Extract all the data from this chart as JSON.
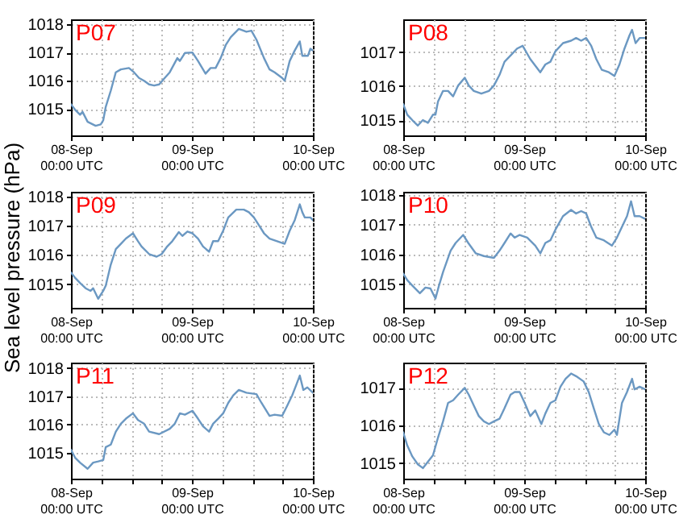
{
  "chart_data": [
    {
      "type": "line",
      "title": "P07",
      "color": "#6b98c2",
      "line_style": "solid",
      "grid": true,
      "xlim": [
        "--09-08T00:00",
        "--09-10T00:00"
      ],
      "ylim": [
        1014.07,
        1018.17
      ],
      "yticks": [
        1015,
        1016,
        1017,
        1018
      ],
      "xticks": [
        {
          "value": "--09-08T00:00",
          "label": "08-Sep\n00:00 UTC"
        },
        {
          "value": "--09-08T06:00",
          "label": null
        },
        {
          "value": "--09-08T12:00",
          "label": null
        },
        {
          "value": "--09-08T18:00",
          "label": null
        },
        {
          "value": "--09-09T00:00",
          "label": "09-Sep\n00:00 UTC"
        },
        {
          "value": "--09-09T06:00",
          "label": null
        },
        {
          "value": "--09-09T12:00",
          "label": null
        },
        {
          "value": "--09-09T18:00",
          "label": null
        },
        {
          "value": "--09-10T00:00",
          "label": "10-Sep\n00:00 UTC"
        }
      ],
      "x": [
        "--09-08T00:00",
        "--09-08T00:48",
        "--09-08T01:48",
        "--09-08T02:18",
        "--09-08T03:18",
        "--09-08T04:54",
        "--09-08T05:54",
        "--09-08T06:24",
        "--09-08T06:54",
        "--09-08T07:54",
        "--09-08T08:54",
        "--09-08T09:54",
        "--09-08T11:30",
        "--09-08T12:30",
        "--09-08T13:30",
        "--09-08T14:30",
        "--09-08T15:30",
        "--09-08T16:30",
        "--09-08T17:30",
        "--09-08T18:36",
        "--09-08T19:36",
        "--09-08T21:06",
        "--09-08T21:36",
        "--09-08T22:36",
        "--09-09T00:06",
        "--09-09T01:12",
        "--09-09T02:42",
        "--09-09T03:42",
        "--09-09T04:42",
        "--09-09T05:42",
        "--09-09T06:42",
        "--09-09T07:42",
        "--09-09T09:18",
        "--09-09T10:48",
        "--09-09T11:48",
        "--09-09T12:48",
        "--09-09T14:18",
        "--09-09T15:24",
        "--09-09T16:24",
        "--09-09T17:54",
        "--09-09T18:24",
        "--09-09T19:24",
        "--09-09T20:24",
        "--09-09T21:24",
        "--09-09T21:54",
        "--09-09T23:00",
        "--09-09T23:30",
        "--09-10T00:00"
      ],
      "values": [
        1015.17,
        1014.98,
        1014.8,
        1014.9,
        1014.55,
        1014.41,
        1014.46,
        1014.6,
        1015.08,
        1015.65,
        1016.3,
        1016.4,
        1016.45,
        1016.3,
        1016.1,
        1016.0,
        1015.87,
        1015.83,
        1015.87,
        1016.1,
        1016.3,
        1016.8,
        1016.7,
        1016.98,
        1017.0,
        1016.7,
        1016.25,
        1016.45,
        1016.45,
        1016.8,
        1017.26,
        1017.54,
        1017.83,
        1017.73,
        1017.77,
        1017.45,
        1016.8,
        1016.4,
        1016.3,
        1016.1,
        1016.0,
        1016.7,
        1017.07,
        1017.39,
        1016.88,
        1016.88,
        1017.13,
        1017.07
      ]
    },
    {
      "type": "line",
      "title": "P08",
      "color": "#6b98c2",
      "line_style": "solid",
      "grid": true,
      "xlim": [
        "--09-08T00:00",
        "--09-10T00:00"
      ],
      "ylim": [
        1014.55,
        1017.97
      ],
      "yticks": [
        1015,
        1016,
        1017
      ],
      "xticks": [
        {
          "value": "--09-08T00:00",
          "label": "08-Sep\n00:00 UTC"
        },
        {
          "value": "--09-08T06:00",
          "label": null
        },
        {
          "value": "--09-08T12:00",
          "label": null
        },
        {
          "value": "--09-08T18:00",
          "label": null
        },
        {
          "value": "--09-09T00:00",
          "label": "09-Sep\n00:00 UTC"
        },
        {
          "value": "--09-09T06:00",
          "label": null
        },
        {
          "value": "--09-09T12:00",
          "label": null
        },
        {
          "value": "--09-09T18:00",
          "label": null
        },
        {
          "value": "--09-10T00:00",
          "label": "10-Sep\n00:00 UTC"
        }
      ],
      "x": [
        "--09-08T00:00",
        "--09-08T00:48",
        "--09-08T01:48",
        "--09-08T02:54",
        "--09-08T03:54",
        "--09-08T04:54",
        "--09-08T05:54",
        "--09-08T06:24",
        "--09-08T06:54",
        "--09-08T07:54",
        "--09-08T08:54",
        "--09-08T09:54",
        "--09-08T10:54",
        "--09-08T12:12",
        "--09-08T13:00",
        "--09-08T14:00",
        "--09-08T15:30",
        "--09-08T17:00",
        "--09-08T18:00",
        "--09-08T19:06",
        "--09-08T20:06",
        "--09-08T21:36",
        "--09-08T22:36",
        "--09-08T23:42",
        "--09-09T01:12",
        "--09-09T03:12",
        "--09-09T04:12",
        "--09-09T05:12",
        "--09-09T06:12",
        "--09-09T07:42",
        "--09-09T09:18",
        "--09-09T10:18",
        "--09-09T11:18",
        "--09-09T12:18",
        "--09-09T13:18",
        "--09-09T14:18",
        "--09-09T15:24",
        "--09-09T16:48",
        "--09-09T17:54",
        "--09-09T18:54",
        "--09-09T19:54",
        "--09-09T20:54",
        "--09-09T21:24",
        "--09-09T22:06",
        "--09-09T22:54",
        "--09-10T00:00"
      ],
      "values": [
        1015.47,
        1015.16,
        1015.0,
        1014.84,
        1015.0,
        1014.92,
        1015.16,
        1015.16,
        1015.55,
        1015.86,
        1015.86,
        1015.7,
        1016.02,
        1016.25,
        1016.02,
        1015.86,
        1015.78,
        1015.86,
        1016.02,
        1016.33,
        1016.72,
        1016.95,
        1017.11,
        1017.19,
        1016.8,
        1016.41,
        1016.64,
        1016.72,
        1017.03,
        1017.27,
        1017.34,
        1017.42,
        1017.34,
        1017.42,
        1017.19,
        1016.8,
        1016.48,
        1016.41,
        1016.3,
        1016.64,
        1017.11,
        1017.5,
        1017.66,
        1017.27,
        1017.42,
        1017.42
      ]
    },
    {
      "type": "line",
      "title": "P09",
      "ylabel": "Sea level pressure (hPa)",
      "color": "#6b98c2",
      "line_style": "solid",
      "grid": true,
      "xlim": [
        "--09-08T00:00",
        "--09-10T00:00"
      ],
      "ylim": [
        1014.19,
        1018.16
      ],
      "yticks": [
        1015,
        1016,
        1017,
        1018
      ],
      "xticks": [
        {
          "value": "--09-08T00:00",
          "label": "08-Sep\n00:00 UTC"
        },
        {
          "value": "--09-08T06:00",
          "label": null
        },
        {
          "value": "--09-08T12:00",
          "label": null
        },
        {
          "value": "--09-08T18:00",
          "label": null
        },
        {
          "value": "--09-09T00:00",
          "label": "09-Sep\n00:00 UTC"
        },
        {
          "value": "--09-09T06:00",
          "label": null
        },
        {
          "value": "--09-09T12:00",
          "label": null
        },
        {
          "value": "--09-09T18:00",
          "label": null
        },
        {
          "value": "--09-10T00:00",
          "label": "10-Sep\n00:00 UTC"
        }
      ],
      "x": [
        "--09-08T00:00",
        "--09-08T00:48",
        "--09-08T01:48",
        "--09-08T02:54",
        "--09-08T03:54",
        "--09-08T04:24",
        "--09-08T05:24",
        "--09-08T06:24",
        "--09-08T06:54",
        "--09-08T07:54",
        "--09-08T08:54",
        "--09-08T09:54",
        "--09-08T10:54",
        "--09-08T12:18",
        "--09-08T13:18",
        "--09-08T14:00",
        "--09-08T15:30",
        "--09-08T17:00",
        "--09-08T18:00",
        "--09-08T19:06",
        "--09-08T20:06",
        "--09-08T21:24",
        "--09-08T22:06",
        "--09-08T23:06",
        "--09-09T00:06",
        "--09-09T01:12",
        "--09-09T02:12",
        "--09-09T03:24",
        "--09-09T04:12",
        "--09-09T05:12",
        "--09-09T06:12",
        "--09-09T07:12",
        "--09-09T08:48",
        "--09-09T10:18",
        "--09-09T11:18",
        "--09-09T12:18",
        "--09-09T13:18",
        "--09-09T14:18",
        "--09-09T15:24",
        "--09-09T16:54",
        "--09-09T18:24",
        "--09-09T19:24",
        "--09-09T20:24",
        "--09-09T21:24",
        "--09-09T21:54",
        "--09-09T22:24",
        "--09-09T23:30",
        "--09-10T00:00"
      ],
      "values": [
        1015.4,
        1015.22,
        1015.04,
        1014.86,
        1014.77,
        1014.86,
        1014.5,
        1014.77,
        1014.95,
        1015.67,
        1016.2,
        1016.38,
        1016.56,
        1016.74,
        1016.47,
        1016.29,
        1016.03,
        1015.94,
        1016.03,
        1016.29,
        1016.47,
        1016.78,
        1016.65,
        1016.8,
        1016.74,
        1016.56,
        1016.29,
        1016.11,
        1016.47,
        1016.47,
        1016.83,
        1017.28,
        1017.55,
        1017.55,
        1017.46,
        1017.28,
        1017.01,
        1016.74,
        1016.56,
        1016.47,
        1016.38,
        1016.83,
        1017.19,
        1017.73,
        1017.46,
        1017.28,
        1017.28,
        1017.19
      ]
    },
    {
      "type": "line",
      "title": "P10",
      "color": "#6b98c2",
      "line_style": "solid",
      "grid": true,
      "xlim": [
        "--09-08T00:00",
        "--09-10T00:00"
      ],
      "ylim": [
        1014.21,
        1018.11
      ],
      "yticks": [
        1015,
        1016,
        1017,
        1018
      ],
      "xticks": [
        {
          "value": "--09-08T00:00",
          "label": "08-Sep\n00:00 UTC"
        },
        {
          "value": "--09-08T06:00",
          "label": null
        },
        {
          "value": "--09-08T12:00",
          "label": null
        },
        {
          "value": "--09-08T18:00",
          "label": null
        },
        {
          "value": "--09-09T00:00",
          "label": "09-Sep\n00:00 UTC"
        },
        {
          "value": "--09-09T06:00",
          "label": null
        },
        {
          "value": "--09-09T12:00",
          "label": null
        },
        {
          "value": "--09-09T18:00",
          "label": null
        },
        {
          "value": "--09-10T00:00",
          "label": "10-Sep\n00:00 UTC"
        }
      ],
      "x": [
        "--09-08T00:00",
        "--09-08T00:48",
        "--09-08T01:48",
        "--09-08T03:18",
        "--09-08T04:24",
        "--09-08T05:24",
        "--09-08T06:24",
        "--09-08T07:06",
        "--09-08T07:54",
        "--09-08T09:24",
        "--09-08T10:24",
        "--09-08T11:54",
        "--09-08T12:54",
        "--09-08T14:24",
        "--09-08T16:00",
        "--09-08T18:00",
        "--09-08T19:06",
        "--09-08T20:06",
        "--09-08T21:18",
        "--09-08T22:06",
        "--09-08T23:06",
        "--09-09T00:36",
        "--09-09T02:12",
        "--09-09T03:12",
        "--09-09T04:12",
        "--09-09T05:12",
        "--09-09T06:12",
        "--09-09T07:42",
        "--09-09T09:18",
        "--09-09T10:18",
        "--09-09T11:18",
        "--09-09T12:18",
        "--09-09T13:18",
        "--09-09T14:18",
        "--09-09T15:48",
        "--09-09T17:24",
        "--09-09T18:24",
        "--09-09T19:24",
        "--09-09T20:24",
        "--09-09T21:12",
        "--09-09T21:54",
        "--09-09T22:54",
        "--09-10T00:00"
      ],
      "values": [
        1015.36,
        1015.14,
        1014.96,
        1014.7,
        1014.89,
        1014.86,
        1014.52,
        1014.96,
        1015.41,
        1016.13,
        1016.39,
        1016.66,
        1016.39,
        1016.04,
        1015.95,
        1015.89,
        1016.13,
        1016.39,
        1016.71,
        1016.57,
        1016.66,
        1016.57,
        1016.3,
        1016.04,
        1016.39,
        1016.48,
        1016.84,
        1017.29,
        1017.5,
        1017.38,
        1017.46,
        1017.38,
        1016.93,
        1016.57,
        1016.48,
        1016.3,
        1016.57,
        1016.93,
        1017.29,
        1017.79,
        1017.29,
        1017.29,
        1017.2
      ]
    },
    {
      "type": "line",
      "title": "P11",
      "color": "#6b98c2",
      "line_style": "solid",
      "grid": true,
      "xlim": [
        "--09-08T00:00",
        "--09-10T00:00"
      ],
      "ylim": [
        1014.08,
        1018.2
      ],
      "yticks": [
        1015,
        1016,
        1017,
        1018
      ],
      "xticks": [
        {
          "value": "--09-08T00:00",
          "label": "08-Sep\n00:00 UTC"
        },
        {
          "value": "--09-08T06:00",
          "label": null
        },
        {
          "value": "--09-08T12:00",
          "label": null
        },
        {
          "value": "--09-08T18:00",
          "label": null
        },
        {
          "value": "--09-09T00:00",
          "label": "09-Sep\n00:00 UTC"
        },
        {
          "value": "--09-09T06:00",
          "label": null
        },
        {
          "value": "--09-09T12:00",
          "label": null
        },
        {
          "value": "--09-09T18:00",
          "label": null
        },
        {
          "value": "--09-10T00:00",
          "label": "10-Sep\n00:00 UTC"
        }
      ],
      "x": [
        "--09-08T00:00",
        "--09-08T00:48",
        "--09-08T01:48",
        "--09-08T03:18",
        "--09-08T04:24",
        "--09-08T05:24",
        "--09-08T06:24",
        "--09-08T06:54",
        "--09-08T07:54",
        "--09-08T08:54",
        "--09-08T09:54",
        "--09-08T10:54",
        "--09-08T12:18",
        "--09-08T13:18",
        "--09-08T14:30",
        "--09-08T15:30",
        "--09-08T17:30",
        "--09-08T19:36",
        "--09-08T20:36",
        "--09-08T21:36",
        "--09-08T22:36",
        "--09-09T00:06",
        "--09-09T01:12",
        "--09-09T02:12",
        "--09-09T03:24",
        "--09-09T04:12",
        "--09-09T05:12",
        "--09-09T06:12",
        "--09-09T07:12",
        "--09-09T08:12",
        "--09-09T09:18",
        "--09-09T10:48",
        "--09-09T12:48",
        "--09-09T13:48",
        "--09-09T15:24",
        "--09-09T16:24",
        "--09-09T17:54",
        "--09-09T18:54",
        "--09-09T19:54",
        "--09-09T20:42",
        "--09-09T21:24",
        "--09-09T22:06",
        "--09-09T22:54",
        "--09-10T00:00"
      ],
      "values": [
        1015.11,
        1014.83,
        1014.65,
        1014.43,
        1014.65,
        1014.69,
        1014.74,
        1015.2,
        1015.29,
        1015.75,
        1016.03,
        1016.21,
        1016.4,
        1016.16,
        1016.03,
        1015.75,
        1015.66,
        1015.85,
        1016.03,
        1016.4,
        1016.35,
        1016.49,
        1016.21,
        1015.94,
        1015.75,
        1016.03,
        1016.21,
        1016.4,
        1016.77,
        1017.04,
        1017.23,
        1017.13,
        1017.08,
        1016.77,
        1016.31,
        1016.35,
        1016.31,
        1016.67,
        1017.04,
        1017.41,
        1017.74,
        1017.23,
        1017.32,
        1017.13
      ]
    },
    {
      "type": "line",
      "title": "P12",
      "color": "#6b98c2",
      "line_style": "solid",
      "grid": true,
      "xlim": [
        "--09-08T00:00",
        "--09-10T00:00"
      ],
      "ylim": [
        1014.59,
        1017.67
      ],
      "yticks": [
        1015,
        1016,
        1017
      ],
      "xticks": [
        {
          "value": "--09-08T00:00",
          "label": "08-Sep\n00:00 UTC"
        },
        {
          "value": "--09-08T06:00",
          "label": null
        },
        {
          "value": "--09-08T12:00",
          "label": null
        },
        {
          "value": "--09-08T18:00",
          "label": null
        },
        {
          "value": "--09-09T00:00",
          "label": "09-Sep\n00:00 UTC"
        },
        {
          "value": "--09-09T06:00",
          "label": null
        },
        {
          "value": "--09-09T12:00",
          "label": null
        },
        {
          "value": "--09-09T18:00",
          "label": null
        },
        {
          "value": "--09-10T00:00",
          "label": "10-Sep\n00:00 UTC"
        }
      ],
      "x": [
        "--09-08T00:00",
        "--09-08T00:48",
        "--09-08T01:48",
        "--09-08T02:54",
        "--09-08T03:54",
        "--09-08T04:54",
        "--09-08T05:54",
        "--09-08T06:54",
        "--09-08T07:54",
        "--09-08T08:54",
        "--09-08T09:54",
        "--09-08T10:54",
        "--09-08T12:12",
        "--09-08T13:00",
        "--09-08T14:00",
        "--09-08T15:00",
        "--09-08T16:00",
        "--09-08T17:00",
        "--09-08T18:00",
        "--09-08T19:06",
        "--09-08T20:06",
        "--09-08T21:18",
        "--09-08T22:06",
        "--09-08T23:06",
        "--09-09T00:06",
        "--09-09T01:12",
        "--09-09T02:12",
        "--09-09T03:24",
        "--09-09T04:12",
        "--09-09T05:12",
        "--09-09T06:12",
        "--09-09T07:12",
        "--09-09T08:12",
        "--09-09T09:18",
        "--09-09T10:18",
        "--09-09T11:48",
        "--09-09T12:48",
        "--09-09T13:48",
        "--09-09T14:48",
        "--09-09T15:48",
        "--09-09T16:54",
        "--09-09T17:54",
        "--09-09T18:24",
        "--09-09T18:54",
        "--09-09T19:24",
        "--09-09T20:24",
        "--09-09T21:24",
        "--09-09T21:54",
        "--09-09T22:54",
        "--09-10T00:00"
      ],
      "values": [
        1015.82,
        1015.47,
        1015.18,
        1014.97,
        1014.87,
        1015.04,
        1015.21,
        1015.68,
        1016.11,
        1016.6,
        1016.67,
        1016.82,
        1017.0,
        1016.82,
        1016.53,
        1016.25,
        1016.11,
        1016.04,
        1016.11,
        1016.18,
        1016.46,
        1016.82,
        1016.89,
        1016.89,
        1016.6,
        1016.25,
        1016.4,
        1016.04,
        1016.32,
        1016.6,
        1016.67,
        1017.03,
        1017.24,
        1017.38,
        1017.31,
        1017.17,
        1016.89,
        1016.46,
        1016.04,
        1015.82,
        1015.75,
        1015.89,
        1015.75,
        1016.18,
        1016.6,
        1016.89,
        1017.24,
        1016.96,
        1017.03,
        1016.96
      ]
    }
  ]
}
